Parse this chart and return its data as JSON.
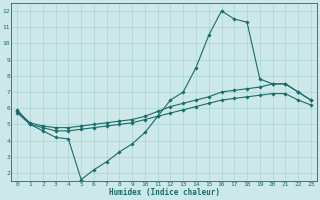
{
  "xlabel": "Humidex (Indice chaleur)",
  "bg_color": "#cce8e8",
  "line_color": "#1a6b6b",
  "grid_color": "#aad4d4",
  "xlim": [
    -0.5,
    23.5
  ],
  "ylim": [
    1.5,
    12.5
  ],
  "yticks": [
    2,
    3,
    4,
    5,
    6,
    7,
    8,
    9,
    10,
    11,
    12
  ],
  "xticks": [
    0,
    1,
    2,
    3,
    4,
    5,
    6,
    7,
    8,
    9,
    10,
    11,
    12,
    13,
    14,
    15,
    16,
    17,
    18,
    19,
    20,
    21,
    22,
    23
  ],
  "curve1_x": [
    0,
    1,
    2,
    3,
    4,
    5,
    6,
    7,
    8,
    9,
    10,
    11,
    12,
    13,
    14,
    15,
    16,
    17,
    18,
    19,
    20,
    21,
    22,
    23
  ],
  "curve1_y": [
    5.9,
    5.0,
    4.6,
    4.2,
    4.1,
    1.6,
    2.2,
    2.7,
    3.3,
    3.8,
    4.5,
    5.5,
    6.5,
    7.0,
    8.5,
    10.5,
    12.0,
    11.5,
    11.3,
    7.8,
    7.5,
    7.5,
    7.0,
    6.5
  ],
  "curve2_x": [
    0,
    1,
    2,
    3,
    4,
    5,
    6,
    7,
    8,
    9,
    10,
    11,
    12,
    13,
    14,
    15,
    16,
    17,
    18,
    19,
    20,
    21,
    22,
    23
  ],
  "curve2_y": [
    5.8,
    5.1,
    4.9,
    4.8,
    4.8,
    4.9,
    5.0,
    5.1,
    5.2,
    5.3,
    5.5,
    5.8,
    6.1,
    6.3,
    6.5,
    6.7,
    7.0,
    7.1,
    7.2,
    7.3,
    7.5,
    7.5,
    7.0,
    6.5
  ],
  "curve3_x": [
    0,
    1,
    2,
    3,
    4,
    5,
    6,
    7,
    8,
    9,
    10,
    11,
    12,
    13,
    14,
    15,
    16,
    17,
    18,
    19,
    20,
    21,
    22,
    23
  ],
  "curve3_y": [
    5.7,
    5.0,
    4.8,
    4.6,
    4.6,
    4.7,
    4.8,
    4.9,
    5.0,
    5.1,
    5.3,
    5.5,
    5.7,
    5.9,
    6.1,
    6.3,
    6.5,
    6.6,
    6.7,
    6.8,
    6.9,
    6.9,
    6.5,
    6.2
  ]
}
